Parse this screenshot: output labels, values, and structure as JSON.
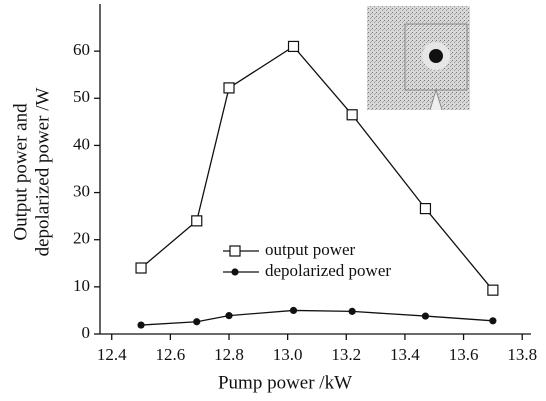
{
  "chart_data": {
    "type": "line",
    "xlabel": "Pump power /kW",
    "ylabel": [
      "Output power and",
      "depolarized power /W"
    ],
    "xlim": [
      12.36,
      13.83
    ],
    "xticks": [
      12.4,
      12.6,
      12.8,
      {
        "value": 13,
        "label": "13.0"
      },
      13.2,
      13.4,
      13.6,
      13.8
    ],
    "ylim": [
      0,
      70
    ],
    "yticks": [
      0,
      10,
      20,
      30,
      40,
      50,
      60
    ],
    "legend": "center",
    "x": [
      12.5,
      12.69,
      12.8,
      13.02,
      13.22,
      13.47,
      13.7
    ],
    "series": [
      {
        "name": "output power",
        "color": "#111111",
        "marker": "open-square",
        "values": [
          14,
          24,
          52.2,
          61,
          46.5,
          26.6,
          9.3
        ]
      },
      {
        "name": "depolarized power",
        "color": "#111111",
        "marker": "filled-circle",
        "values": [
          1.9,
          2.6,
          3.9,
          5,
          4.8,
          3.8,
          2.8
        ]
      }
    ]
  }
}
